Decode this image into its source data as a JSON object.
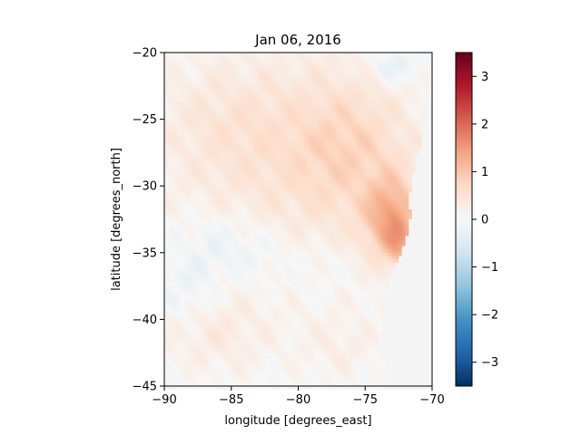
{
  "chart_data": {
    "type": "heatmap",
    "title": "Jan 06, 2016",
    "xlabel": "longitude [degrees_east]",
    "ylabel": "latitude [degrees_north]",
    "xlim": [
      -90,
      -70
    ],
    "ylim": [
      -45,
      -20
    ],
    "xticks": [
      -90,
      -85,
      -80,
      -75,
      -70
    ],
    "yticks": [
      -20,
      -25,
      -30,
      -35,
      -40,
      -45
    ],
    "xtick_labels": [
      "−90",
      "−85",
      "−80",
      "−75",
      "−70"
    ],
    "ytick_labels": [
      "−20",
      "−25",
      "−30",
      "−35",
      "−40",
      "−45"
    ],
    "colorbar": {
      "colormap": "RdBu_r",
      "vmin": -3.5,
      "vmax": 3.5,
      "ticks": [
        3,
        2,
        1,
        0,
        -1,
        -2,
        -3
      ],
      "tick_labels": [
        "3",
        "2",
        "1",
        "0",
        "−1",
        "−2",
        "−3"
      ]
    },
    "grid_resolution_deg": 0.25,
    "land_color": "#f4f4f4",
    "coastline": [
      [
        -20,
        -70.2
      ],
      [
        -22,
        -70.3
      ],
      [
        -24,
        -70.5
      ],
      [
        -26,
        -70.7
      ],
      [
        -27,
        -70.8
      ],
      [
        -28,
        -71.3
      ],
      [
        -29,
        -71.4
      ],
      [
        -30,
        -71.6
      ],
      [
        -31,
        -71.7
      ],
      [
        -32,
        -71.6
      ],
      [
        -33,
        -71.7
      ],
      [
        -34,
        -72.0
      ],
      [
        -35,
        -72.3
      ],
      [
        -36,
        -72.8
      ],
      [
        -37,
        -73.3
      ],
      [
        -38,
        -73.5
      ],
      [
        -39,
        -73.3
      ],
      [
        -40,
        -73.7
      ],
      [
        -41,
        -73.9
      ],
      [
        -42,
        -73.9
      ],
      [
        -43,
        -73.7
      ],
      [
        -44,
        -73.3
      ],
      [
        -45,
        -73.5
      ]
    ],
    "anomaly_features": [
      {
        "lon": -80,
        "lat": -28,
        "amp": 0.5,
        "rx": 9,
        "ry": 8
      },
      {
        "lon": -76,
        "lat": -27,
        "amp": 0.4,
        "rx": 4,
        "ry": 5
      },
      {
        "lon": -73,
        "lat": -32.5,
        "amp": 1.2,
        "rx": 2,
        "ry": 3
      },
      {
        "lon": -72.3,
        "lat": -34.5,
        "amp": 0.6,
        "rx": 1.2,
        "ry": 1.5
      },
      {
        "lon": -86,
        "lat": -25,
        "amp": 0.2,
        "rx": 5,
        "ry": 4
      },
      {
        "lon": -86,
        "lat": -41,
        "amp": 0.3,
        "rx": 4,
        "ry": 3
      },
      {
        "lon": -77,
        "lat": -42,
        "amp": 0.2,
        "rx": 3,
        "ry": 2.5
      },
      {
        "lon": -85,
        "lat": -34.5,
        "amp": -0.35,
        "rx": 4,
        "ry": 2.5
      },
      {
        "lon": -88,
        "lat": -38,
        "amp": -0.25,
        "rx": 2,
        "ry": 2
      },
      {
        "lon": -73,
        "lat": -21,
        "amp": -0.4,
        "rx": 2,
        "ry": 1.5
      },
      {
        "lon": -79,
        "lat": -36,
        "amp": -0.15,
        "rx": 3,
        "ry": 2
      }
    ]
  }
}
